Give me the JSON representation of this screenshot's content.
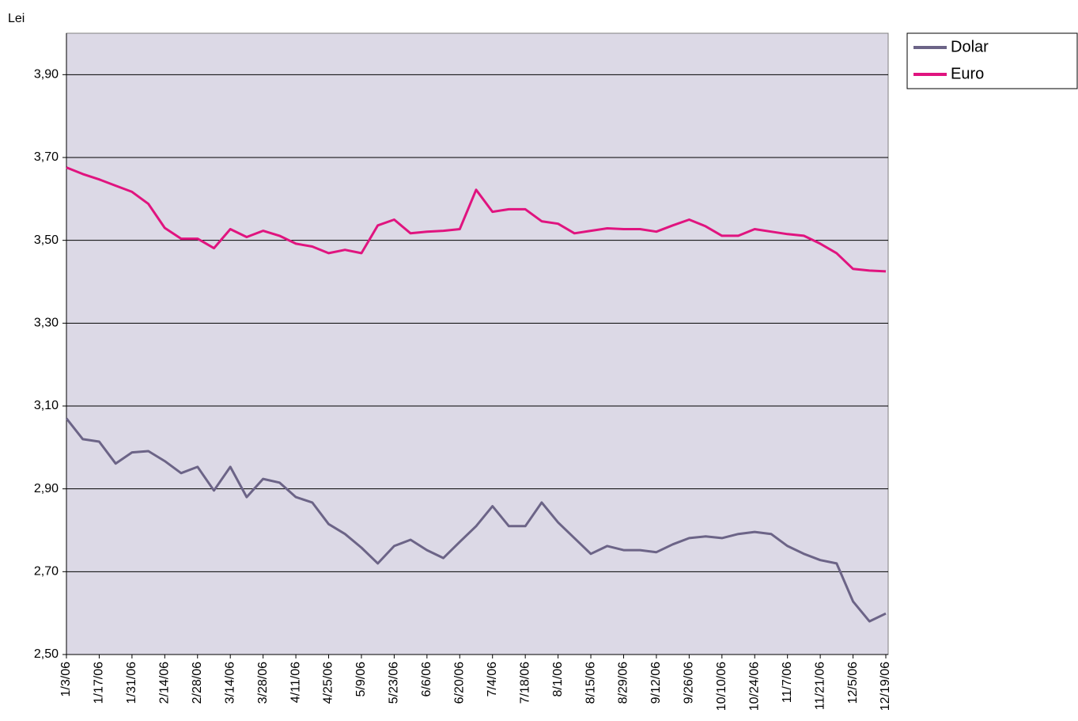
{
  "chart_data": {
    "type": "line",
    "ylabel": "Lei",
    "categories": [
      "1/3/06",
      null,
      "1/17/06",
      null,
      "1/31/06",
      null,
      "2/14/06",
      null,
      "2/28/06",
      null,
      "3/14/06",
      null,
      "3/28/06",
      null,
      "4/11/06",
      null,
      "4/25/06",
      null,
      "5/9/06",
      null,
      "5/23/06",
      null,
      "6/6/06",
      null,
      "6/20/06",
      null,
      "7/4/06",
      null,
      "7/18/06",
      null,
      "8/1/06",
      null,
      "8/15/06",
      null,
      "8/29/06",
      null,
      "9/12/06",
      null,
      "9/26/06",
      null,
      "10/10/06",
      null,
      "10/24/06",
      null,
      "11/7/06",
      null,
      "11/21/06",
      null,
      "12/5/06",
      null,
      "12/19/06"
    ],
    "series": [
      {
        "name": "Dolar",
        "color": "#6c6487",
        "values": [
          3.07,
          3.02,
          3.014,
          2.961,
          2.988,
          2.991,
          2.967,
          2.938,
          2.953,
          2.896,
          2.953,
          2.88,
          2.924,
          2.915,
          2.88,
          2.867,
          2.815,
          2.791,
          2.758,
          2.72,
          2.762,
          2.777,
          2.752,
          2.733,
          2.772,
          2.81,
          2.858,
          2.81,
          2.81,
          2.867,
          2.819,
          2.781,
          2.743,
          2.762,
          2.752,
          2.752,
          2.747,
          2.766,
          2.781,
          2.785,
          2.781,
          2.791,
          2.796,
          2.791,
          2.762,
          2.743,
          2.728,
          2.72,
          2.628,
          2.58,
          2.599
        ]
      },
      {
        "name": "Euro",
        "color": "#e0147f",
        "values": [
          3.676,
          3.66,
          3.647,
          3.632,
          3.617,
          3.588,
          3.53,
          3.504,
          3.504,
          3.481,
          3.527,
          3.508,
          3.523,
          3.511,
          3.492,
          3.485,
          3.469,
          3.477,
          3.469,
          3.536,
          3.55,
          3.517,
          3.521,
          3.523,
          3.527,
          3.622,
          3.569,
          3.575,
          3.575,
          3.546,
          3.54,
          3.517,
          3.523,
          3.529,
          3.527,
          3.527,
          3.521,
          3.536,
          3.55,
          3.534,
          3.511,
          3.511,
          3.527,
          3.521,
          3.515,
          3.511,
          3.492,
          3.469,
          3.431,
          3.427,
          3.425
        ]
      }
    ],
    "ylim": [
      2.5,
      4.0
    ],
    "yticks": [
      {
        "value": 2.5,
        "label": "2,50"
      },
      {
        "value": 2.7,
        "label": "2,70"
      },
      {
        "value": 2.9,
        "label": "2,90"
      },
      {
        "value": 3.1,
        "label": "3,10"
      },
      {
        "value": 3.3,
        "label": "3,30"
      },
      {
        "value": 3.5,
        "label": "3,50"
      },
      {
        "value": 3.7,
        "label": "3,70"
      },
      {
        "value": 3.9,
        "label": "3,90"
      }
    ],
    "grid": true,
    "legend": "right"
  }
}
